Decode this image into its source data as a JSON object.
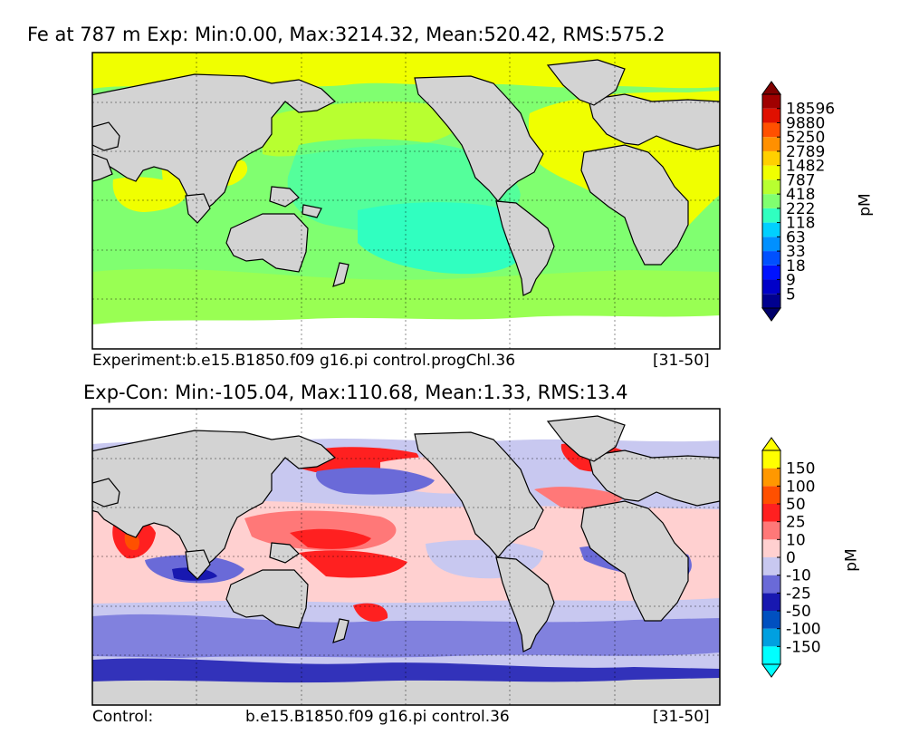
{
  "panels": [
    {
      "title": "Fe at 787 m Exp: Min:0.00, Max:3214.32, Mean:520.42, RMS:575.2",
      "caption_left": "Experiment:b.e15.B1850.f09 g16.pi control.progChl.36",
      "caption_mid": "",
      "caption_right": "[31-50]",
      "map_type": "experiment",
      "colorbar": {
        "unit": "pM",
        "levels": [
          "5",
          "9",
          "18",
          "33",
          "63",
          "118",
          "222",
          "418",
          "787",
          "1482",
          "2789",
          "5250",
          "9880",
          "18596"
        ],
        "colors": [
          "#00008f",
          "#0000c8",
          "#0012ff",
          "#0050ff",
          "#0090ff",
          "#00d0ff",
          "#30ffc0",
          "#80ff70",
          "#b8ff30",
          "#f0ff00",
          "#ffd000",
          "#ff9000",
          "#ff5000",
          "#e01000",
          "#a00000"
        ],
        "under_color": "#00006a",
        "over_color": "#800000"
      }
    },
    {
      "title": "Exp-Con: Min:-105.04, Max:110.68, Mean:1.33, RMS:13.4",
      "caption_left": "Control:",
      "caption_mid": "b.e15.B1850.f09 g16.pi control.36",
      "caption_right": "[31-50]",
      "map_type": "difference",
      "colorbar": {
        "unit": "pM",
        "levels": [
          "-150",
          "-100",
          "-50",
          "-25",
          "-10",
          "0",
          "10",
          "25",
          "50",
          "100",
          "150"
        ],
        "colors": [
          "#00ffff",
          "#00a0e0",
          "#0050c0",
          "#1818b0",
          "#6a6ad8",
          "#c8c8f0",
          "#ffd0d0",
          "#ff7878",
          "#ff2020",
          "#ff5000",
          "#ff9800",
          "#ffff00"
        ],
        "under_color": "#00ffff",
        "over_color": "#ffff00"
      }
    }
  ],
  "chart_data": [
    {
      "type": "heatmap",
      "title": "Fe at 787 m Exp: Min:0.00, Max:3214.32, Mean:520.42, RMS:575.2",
      "variable": "Fe at 787 m",
      "stats": {
        "min": 0.0,
        "max": 3214.32,
        "mean": 520.42,
        "rms": 575.2
      },
      "colorbar_levels": [
        5,
        9,
        18,
        33,
        63,
        118,
        222,
        418,
        787,
        1482,
        2789,
        5250,
        9880,
        18596
      ],
      "units": "pM",
      "regions": [
        {
          "region": "Arctic / high northern latitudes",
          "level": "787-1482"
        },
        {
          "region": "North Atlantic",
          "level": "787-1482"
        },
        {
          "region": "North Pacific subpolar",
          "level": "418-787"
        },
        {
          "region": "Central North Pacific",
          "level": "222-418"
        },
        {
          "region": "South Pacific gyre",
          "level": "118-222"
        },
        {
          "region": "Indian Ocean",
          "level": "418-787"
        },
        {
          "region": "Southern Ocean",
          "level": "418-787"
        }
      ]
    },
    {
      "type": "heatmap",
      "title": "Exp-Con: Min:-105.04, Max:110.68, Mean:1.33, RMS:13.4",
      "variable": "Fe difference (Experiment - Control)",
      "stats": {
        "min": -105.04,
        "max": 110.68,
        "mean": 1.33,
        "rms": 13.4
      },
      "colorbar_levels": [
        -150,
        -100,
        -50,
        -25,
        -10,
        0,
        10,
        25,
        50,
        100,
        150
      ],
      "units": "pM",
      "regions": [
        {
          "region": "Arabian Sea",
          "level": "25-100"
        },
        {
          "region": "Kuroshio / NW Pacific",
          "level": "25-50"
        },
        {
          "region": "Western tropical Pacific",
          "level": "25-50"
        },
        {
          "region": "Eastern tropical Pacific",
          "level": "0-10"
        },
        {
          "region": "Southern Ocean",
          "level": "-50 to -10"
        },
        {
          "region": "South Atlantic (off Africa)",
          "level": "-50 to -25"
        },
        {
          "region": "North Atlantic subpolar",
          "level": "10-50"
        }
      ]
    }
  ]
}
